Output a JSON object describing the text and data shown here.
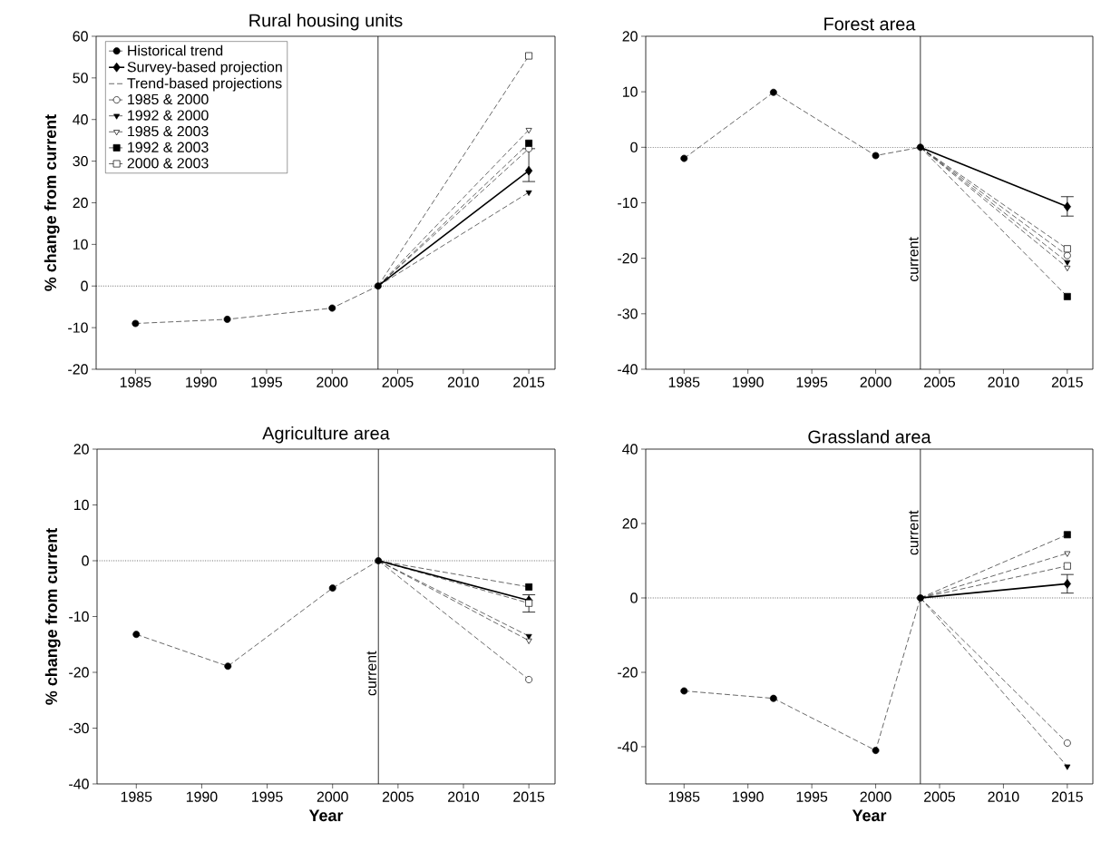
{
  "chart_data": [
    {
      "type": "line",
      "title": "Rural housing units",
      "ylabel": "% change from current",
      "legend": "top left",
      "legend_title": "Trend-based projections",
      "xlim": [
        1982,
        2017
      ],
      "xticks": [
        1985,
        1990,
        1995,
        2000,
        2005,
        2010,
        2015
      ],
      "ylim": [
        -20,
        60
      ],
      "yticks": [
        -20,
        -10,
        0,
        10,
        20,
        30,
        40,
        50,
        60
      ],
      "ref_lines": [
        {
          "axis": "y",
          "value": 0,
          "line_style": "dotted",
          "color": "#000000"
        },
        {
          "axis": "x",
          "value": 2003.5,
          "line_style": "solid",
          "color": "#000000"
        }
      ],
      "series": [
        {
          "name": "Historical trend",
          "color": "#000000",
          "x": [
            1985,
            1992,
            2000,
            2003.5
          ],
          "values": [
            -9,
            -8,
            -5.3,
            0
          ],
          "marker": "circle",
          "line_style": "dashed"
        },
        {
          "name": "Survey-based projection",
          "color": "#000000",
          "x": [
            2003.5,
            2015
          ],
          "values": [
            0,
            27.7
          ],
          "errors": [
            null,
            [
              25.1,
              33
            ]
          ],
          "marker": "diamond",
          "line_style": "solid"
        },
        {
          "name": "1985 & 2000",
          "color": "#000000",
          "x": [
            2003.5,
            2015
          ],
          "values": [
            0,
            33
          ],
          "marker": "circle",
          "line_style": "dashed"
        },
        {
          "name": "1992 & 2000",
          "color": "#000000",
          "x": [
            2003.5,
            2015
          ],
          "values": [
            0,
            22.5
          ],
          "marker": "triangle",
          "line_style": "dashed"
        },
        {
          "name": "1985 & 2003",
          "color": "#000000",
          "x": [
            2003.5,
            2015
          ],
          "values": [
            0,
            37.5
          ],
          "marker": "triangle",
          "line_style": "dashed"
        },
        {
          "name": "1992 & 2003",
          "color": "#000000",
          "x": [
            2003.5,
            2015
          ],
          "values": [
            0,
            34.3
          ],
          "marker": "square",
          "line_style": "dashed"
        },
        {
          "name": "2000 & 2003",
          "color": "#000000",
          "x": [
            2003.5,
            2015
          ],
          "values": [
            0,
            55.3
          ],
          "marker": "square",
          "line_style": "dashed"
        }
      ]
    },
    {
      "type": "line",
      "title": "Forest area",
      "xlim": [
        1982,
        2017
      ],
      "xticks": [
        1985,
        1990,
        1995,
        2000,
        2005,
        2010,
        2015
      ],
      "ylim": [
        -40,
        20
      ],
      "yticks": [
        -40,
        -30,
        -20,
        -10,
        0,
        10,
        20
      ],
      "ref_lines": [
        {
          "axis": "y",
          "value": 0,
          "line_style": "dotted",
          "color": "#000000"
        },
        {
          "axis": "x",
          "value": 2003.5,
          "label": "current",
          "line_style": "solid",
          "color": "#000000"
        }
      ],
      "series": [
        {
          "color": "#000000",
          "x": [
            1985,
            1992,
            2000,
            2003.5
          ],
          "values": [
            -2,
            9.9,
            -1.5,
            0
          ],
          "marker": "circle",
          "line_style": "dashed"
        },
        {
          "color": "#000000",
          "x": [
            2003.5,
            2015
          ],
          "values": [
            0,
            -10.7
          ],
          "errors": [
            null,
            [
              -12.4,
              -8.9
            ]
          ],
          "marker": "diamond",
          "line_style": "solid"
        },
        {
          "color": "#000000",
          "x": [
            2003.5,
            2015
          ],
          "values": [
            0,
            -19.5
          ],
          "marker": "circle",
          "line_style": "dashed"
        },
        {
          "color": "#000000",
          "x": [
            2003.5,
            2015
          ],
          "values": [
            0,
            -20.7
          ],
          "marker": "triangle",
          "line_style": "dashed"
        },
        {
          "color": "#000000",
          "x": [
            2003.5,
            2015
          ],
          "values": [
            0,
            -21.7
          ],
          "marker": "triangle",
          "line_style": "dashed"
        },
        {
          "color": "#000000",
          "x": [
            2003.5,
            2015
          ],
          "values": [
            0,
            -26.9
          ],
          "marker": "square",
          "line_style": "dashed"
        },
        {
          "color": "#000000",
          "x": [
            2003.5,
            2015
          ],
          "values": [
            0,
            -18.3
          ],
          "marker": "square",
          "line_style": "dashed"
        }
      ]
    },
    {
      "type": "line",
      "title": "Agriculture area",
      "xlabel": "Year",
      "ylabel": "% change from current",
      "xlim": [
        1982,
        2017
      ],
      "xticks": [
        1985,
        1990,
        1995,
        2000,
        2005,
        2010,
        2015
      ],
      "ylim": [
        -40,
        20
      ],
      "yticks": [
        -40,
        -30,
        -20,
        -10,
        0,
        10,
        20
      ],
      "ref_lines": [
        {
          "axis": "y",
          "value": 0,
          "line_style": "dotted",
          "color": "#000000"
        },
        {
          "axis": "x",
          "value": 2003.5,
          "label": "current",
          "line_style": "solid",
          "color": "#000000"
        }
      ],
      "series": [
        {
          "color": "#000000",
          "x": [
            1985,
            1992,
            2000,
            2003.5
          ],
          "values": [
            -13.2,
            -18.9,
            -4.9,
            0
          ],
          "marker": "circle",
          "line_style": "dashed"
        },
        {
          "color": "#000000",
          "x": [
            2003.5,
            2015
          ],
          "values": [
            0,
            -7.1
          ],
          "errors": [
            null,
            [
              -9.2,
              -6.1
            ]
          ],
          "marker": "diamond",
          "line_style": "solid"
        },
        {
          "color": "#000000",
          "x": [
            2003.5,
            2015
          ],
          "values": [
            0,
            -21.3
          ],
          "marker": "circle",
          "line_style": "dashed"
        },
        {
          "color": "#000000",
          "x": [
            2003.5,
            2015
          ],
          "values": [
            0,
            -13.5
          ],
          "marker": "triangle",
          "line_style": "dashed"
        },
        {
          "color": "#000000",
          "x": [
            2003.5,
            2015
          ],
          "values": [
            0,
            -14.3
          ],
          "marker": "triangle",
          "line_style": "dashed"
        },
        {
          "color": "#000000",
          "x": [
            2003.5,
            2015
          ],
          "values": [
            0,
            -4.7
          ],
          "marker": "square",
          "line_style": "dashed"
        },
        {
          "color": "#000000",
          "x": [
            2003.5,
            2015
          ],
          "values": [
            0,
            -7.6
          ],
          "marker": "square",
          "line_style": "dashed"
        }
      ]
    },
    {
      "type": "line",
      "title": "Grassland area",
      "xlabel": "Year",
      "xlim": [
        1982,
        2017
      ],
      "xticks": [
        1985,
        1990,
        1995,
        2000,
        2005,
        2010,
        2015
      ],
      "ylim": [
        -50,
        40
      ],
      "yticks": [
        -40,
        -20,
        0,
        20,
        40
      ],
      "ref_lines": [
        {
          "axis": "y",
          "value": 0,
          "line_style": "dotted",
          "color": "#000000"
        },
        {
          "axis": "x",
          "value": 2003.5,
          "label": "current",
          "line_style": "solid",
          "color": "#000000"
        }
      ],
      "series": [
        {
          "color": "#000000",
          "x": [
            1985,
            1992,
            2000,
            2003.5
          ],
          "values": [
            -25,
            -27,
            -41,
            0
          ],
          "marker": "circle",
          "line_style": "dashed"
        },
        {
          "color": "#000000",
          "x": [
            2003.5,
            2015
          ],
          "values": [
            0,
            3.8
          ],
          "errors": [
            null,
            [
              1.3,
              6.3
            ]
          ],
          "marker": "diamond",
          "line_style": "solid"
        },
        {
          "color": "#000000",
          "x": [
            2003.5,
            2015
          ],
          "values": [
            0,
            -39
          ],
          "marker": "circle",
          "line_style": "dashed"
        },
        {
          "color": "#000000",
          "x": [
            2003.5,
            2015
          ],
          "values": [
            0,
            -45.3
          ],
          "marker": "triangle",
          "line_style": "dashed"
        },
        {
          "color": "#000000",
          "x": [
            2003.5,
            2015
          ],
          "values": [
            0,
            12
          ],
          "marker": "triangle",
          "line_style": "dashed"
        },
        {
          "color": "#000000",
          "x": [
            2003.5,
            2015
          ],
          "values": [
            0,
            17
          ],
          "marker": "square",
          "line_style": "dashed"
        },
        {
          "color": "#000000",
          "x": [
            2003.5,
            2015
          ],
          "values": [
            0,
            8.6
          ],
          "marker": "square",
          "line_style": "dashed"
        }
      ]
    }
  ]
}
